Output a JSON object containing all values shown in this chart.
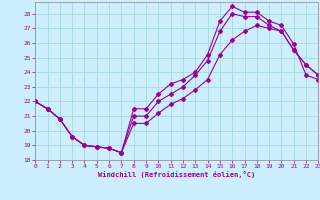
{
  "xlabel": "Windchill (Refroidissement éolien,°C)",
  "xlim": [
    0,
    23
  ],
  "ylim": [
    18,
    28.8
  ],
  "xticks": [
    0,
    1,
    2,
    3,
    4,
    5,
    6,
    7,
    8,
    9,
    10,
    11,
    12,
    13,
    14,
    15,
    16,
    17,
    18,
    19,
    20,
    21,
    22,
    23
  ],
  "yticks": [
    18,
    19,
    20,
    21,
    22,
    23,
    24,
    25,
    26,
    27,
    28
  ],
  "bg_color": "#cceeff",
  "line_color": "#990099",
  "grid_color": "#aadddd",
  "line1_x": [
    0,
    1,
    2,
    3,
    4,
    5,
    6,
    7,
    8,
    9,
    10,
    11,
    12,
    13,
    14,
    15,
    16,
    17,
    18,
    19,
    20,
    21,
    22,
    23
  ],
  "line1_y": [
    22.0,
    21.5,
    20.8,
    19.6,
    19.0,
    18.9,
    18.8,
    18.5,
    21.5,
    21.5,
    22.5,
    23.2,
    23.5,
    24.0,
    25.2,
    27.5,
    28.5,
    28.1,
    28.1,
    27.5,
    27.2,
    25.9,
    23.8,
    23.5
  ],
  "line2_x": [
    0,
    1,
    2,
    3,
    4,
    5,
    6,
    7,
    8,
    9,
    10,
    11,
    12,
    13,
    14,
    15,
    16,
    17,
    18,
    19,
    20,
    21,
    22,
    23
  ],
  "line2_y": [
    22.0,
    21.5,
    20.8,
    19.6,
    19.0,
    18.9,
    18.8,
    18.5,
    21.0,
    21.0,
    22.0,
    22.5,
    23.0,
    23.8,
    24.8,
    26.8,
    28.0,
    27.8,
    27.8,
    27.2,
    26.8,
    25.5,
    24.5,
    23.8
  ],
  "line3_x": [
    0,
    1,
    2,
    3,
    4,
    5,
    6,
    7,
    8,
    9,
    10,
    11,
    12,
    13,
    14,
    15,
    16,
    17,
    18,
    19,
    20,
    21,
    22,
    23
  ],
  "line3_y": [
    22.0,
    21.5,
    20.8,
    19.6,
    19.0,
    18.9,
    18.8,
    18.5,
    20.5,
    20.5,
    21.2,
    21.8,
    22.2,
    22.8,
    23.5,
    25.2,
    26.2,
    26.8,
    27.2,
    27.0,
    26.8,
    25.5,
    24.5,
    23.8
  ]
}
